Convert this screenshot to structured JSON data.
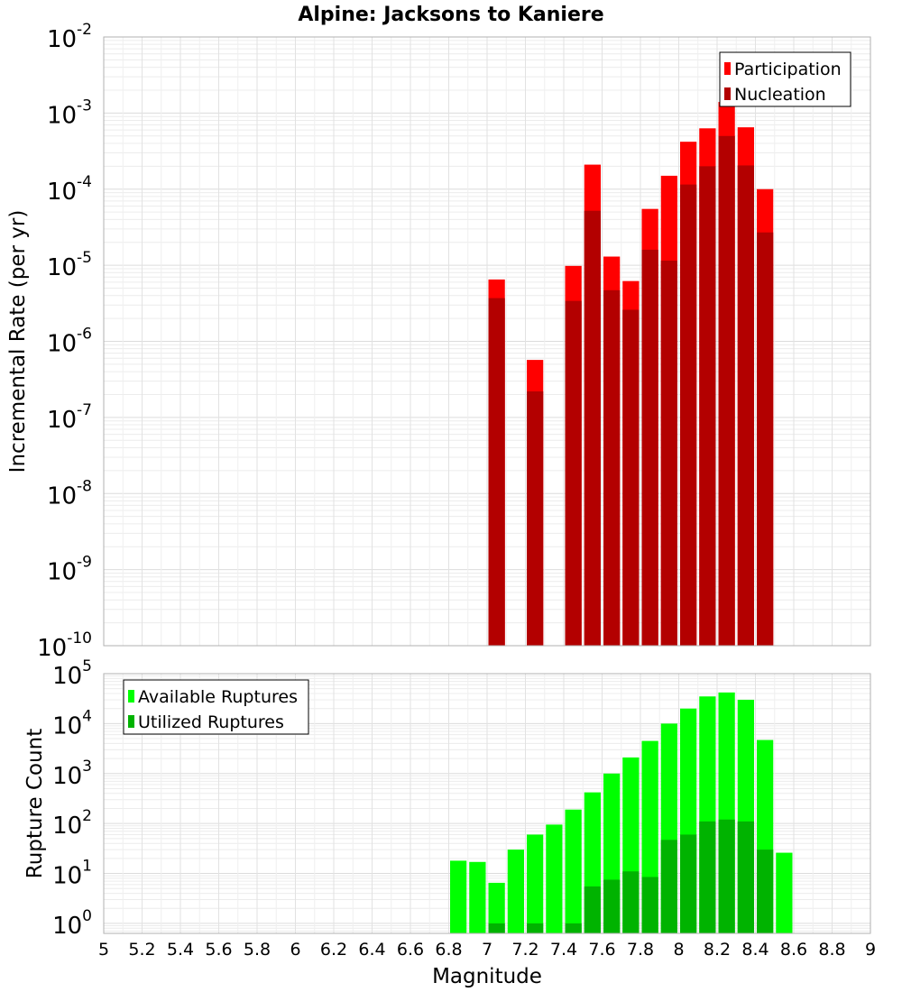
{
  "title": "Alpine: Jacksons to Kaniere",
  "chart_data": [
    {
      "type": "bar",
      "scale": "log",
      "ylabel": "Incremental Rate (per yr)",
      "ylim_exponents": [
        -10,
        -2
      ],
      "y_tick_base": "10",
      "y_tick_exponents": [
        "-10",
        "-9",
        "-8",
        "-7",
        "-6",
        "-5",
        "-4",
        "-3",
        "-2"
      ],
      "bin_width": 0.1,
      "grid": true,
      "legend_position": "top-right",
      "x": [
        7.05,
        7.25,
        7.45,
        7.55,
        7.65,
        7.75,
        7.85,
        7.95,
        8.05,
        8.15,
        8.25,
        8.35,
        8.45
      ],
      "series": [
        {
          "name": "Participation",
          "color": "#ff0000",
          "values": [
            6.5e-06,
            5.7e-07,
            9.8e-06,
            0.00021,
            1.3e-05,
            6.2e-06,
            5.5e-05,
            0.00015,
            0.00042,
            0.00063,
            0.0014,
            0.00065,
            0.0001
          ]
        },
        {
          "name": "Nucleation",
          "color": "#b30000",
          "values": [
            3.7e-06,
            2.2e-07,
            3.4e-06,
            5.2e-05,
            4.7e-06,
            2.6e-06,
            1.6e-05,
            1.15e-05,
            0.000115,
            0.0002,
            0.0005,
            0.000205,
            2.7e-05
          ]
        }
      ]
    },
    {
      "type": "bar",
      "scale": "log",
      "ylabel": "Rupture Count",
      "ylim_exponents": [
        -0.2,
        5
      ],
      "y_tick_base": "10",
      "y_tick_exponents": [
        "0",
        "1",
        "2",
        "3",
        "4",
        "5"
      ],
      "bin_width": 0.1,
      "grid": true,
      "legend_position": "top-left",
      "xlabel": "Magnitude",
      "xlim": [
        5,
        9
      ],
      "x_ticks": [
        "5",
        "5.2",
        "5.4",
        "5.6",
        "5.8",
        "6",
        "6.2",
        "6.4",
        "6.6",
        "6.8",
        "7",
        "7.2",
        "7.4",
        "7.6",
        "7.8",
        "8",
        "8.2",
        "8.4",
        "8.6",
        "8.8",
        "9"
      ],
      "x": [
        6.85,
        6.95,
        7.05,
        7.15,
        7.25,
        7.35,
        7.45,
        7.55,
        7.65,
        7.75,
        7.85,
        7.95,
        8.05,
        8.15,
        8.25,
        8.35,
        8.45,
        8.55
      ],
      "series": [
        {
          "name": "Available Ruptures",
          "color": "#00ff00",
          "values": [
            18,
            17,
            6.5,
            30,
            60,
            95,
            190,
            420,
            1000,
            2100,
            4500,
            10000,
            20000,
            35000,
            42000,
            30000,
            4700,
            26
          ]
        },
        {
          "name": "Utilized Ruptures",
          "color": "#00b300",
          "values": [
            0,
            0,
            1,
            0,
            1,
            0,
            1,
            5.5,
            7.5,
            11,
            8.5,
            47,
            60,
            110,
            120,
            110,
            30,
            0
          ]
        }
      ]
    }
  ]
}
